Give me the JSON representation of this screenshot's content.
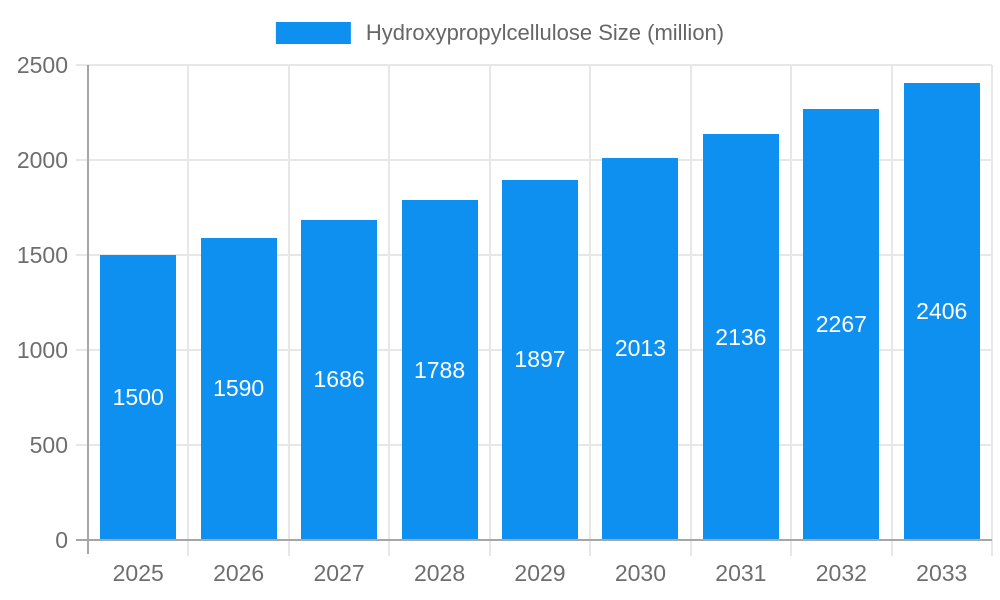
{
  "chart_data": {
    "type": "bar",
    "title": "",
    "series_name": "Hydroxypropylcellulose Size (million)",
    "categories": [
      "2025",
      "2026",
      "2027",
      "2028",
      "2029",
      "2030",
      "2031",
      "2032",
      "2033"
    ],
    "values": [
      1500,
      1590,
      1686,
      1788,
      1897,
      2013,
      2136,
      2267,
      2406
    ],
    "xlabel": "",
    "ylabel": "",
    "ylim": [
      0,
      2500
    ],
    "yticks": [
      0,
      500,
      1000,
      1500,
      2000,
      2500
    ],
    "grid": true,
    "legend_position": "top-center",
    "bar_color": "#0e90f1",
    "bar_label_color": "#ffffff",
    "axis_text_color": "#6e6e6e",
    "legend_text_color": "#666666",
    "gridline_color": "#e7e7e7",
    "axis_line_color": "#a6a6a6",
    "background_color": "#ffffff"
  }
}
